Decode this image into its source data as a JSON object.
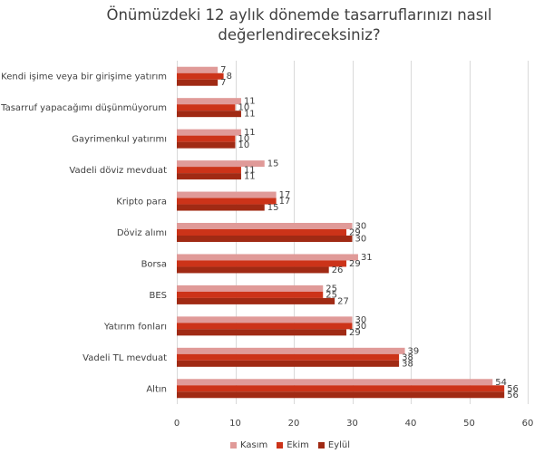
{
  "chart_data": {
    "type": "bar",
    "orientation": "horizontal",
    "title": "Önümüzdeki 12 aylık dönemde tasarruflarınızı nasıl değerlendireceksiniz?",
    "title_lines": [
      "Önümüzdeki 12 aylık dönemde tasarruflarınızı nasıl",
      "değerlendireceksiniz?"
    ],
    "xlabel": "",
    "ylabel": "",
    "xlim": [
      0,
      60
    ],
    "x_ticks": [
      0,
      10,
      20,
      30,
      40,
      50,
      60
    ],
    "grid": true,
    "legend_position": "bottom",
    "categories": [
      "Kendi işime veya bir girişime yatırım",
      "Tasarruf yapacağımı düşünmüyorum",
      "Gayrimenkul yatırımı",
      "Vadeli döviz mevduat",
      "Kripto para",
      "Döviz alımı",
      "Borsa",
      "BES",
      "Yatırım fonları",
      "Vadeli TL mevduat",
      "Altın"
    ],
    "series": [
      {
        "name": "Kasım",
        "color": "#E09A98",
        "values": [
          7,
          11,
          11,
          15,
          17,
          30,
          31,
          25,
          30,
          39,
          54
        ]
      },
      {
        "name": "Ekim",
        "color": "#CC3319",
        "values": [
          8,
          10,
          10,
          11,
          17,
          29,
          29,
          25,
          30,
          38,
          56
        ]
      },
      {
        "name": "Eylül",
        "color": "#A02A14",
        "values": [
          7,
          11,
          10,
          11,
          15,
          30,
          26,
          27,
          29,
          38,
          56
        ]
      }
    ]
  },
  "legend": {
    "items": [
      {
        "label": "Kasım",
        "color": "#E09A98"
      },
      {
        "label": "Ekim",
        "color": "#CC3319"
      },
      {
        "label": "Eylül",
        "color": "#A02A14"
      }
    ]
  },
  "colors": {
    "gridline": "#D9D9D9",
    "text": "#404040"
  }
}
